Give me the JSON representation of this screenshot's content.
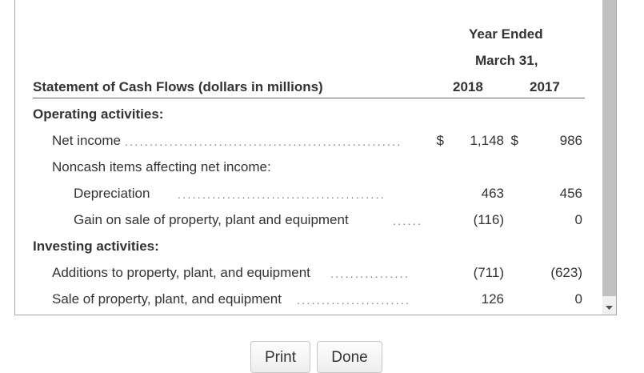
{
  "header": {
    "year_ended": "Year Ended",
    "march": "March 31,",
    "title": "Statement of Cash Flows (dollars in millions)",
    "col_2018": "2018",
    "col_2017": "2017"
  },
  "sections": {
    "operating": "Operating activities:",
    "investing": "Investing activities:"
  },
  "rows": {
    "net_income": {
      "label": "Net income",
      "currency_2018": "$",
      "v2018": "1,148",
      "currency_2017": "$",
      "v2017": "986"
    },
    "noncash": {
      "label": "Noncash items affecting net income:"
    },
    "depreciation": {
      "label": "Depreciation",
      "v2018": "463",
      "v2017": "456"
    },
    "gain_on_sale": {
      "label": "Gain on sale of property, plant and equipment",
      "v2018": "(116)",
      "v2017": "0"
    },
    "additions": {
      "label": "Additions to property, plant, and equipment",
      "v2018": "(711)",
      "v2017": "(623)"
    },
    "sale": {
      "label": "Sale of property, plant, and equipment",
      "v2018": "126",
      "v2017": "0"
    }
  },
  "buttons": {
    "print": "Print",
    "done": "Done"
  }
}
